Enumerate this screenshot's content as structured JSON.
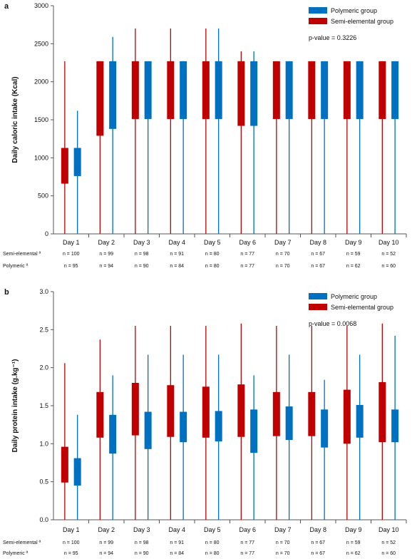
{
  "colors": {
    "semi_elemental": "#c00000",
    "polymeric": "#0070c0",
    "axis": "#555555"
  },
  "chart_data": [
    {
      "type": "box",
      "panel_label": "a",
      "ylabel": "Daily caloric intake (Kcal)",
      "ylim": [
        0,
        3000
      ],
      "yticks": [
        "0",
        "500",
        "1000",
        "1500",
        "2000",
        "2500",
        "3000"
      ],
      "categories": [
        "Day 1",
        "Day 2",
        "Day 3",
        "Day 4",
        "Day 5",
        "Day 6",
        "Day 7",
        "Day 8",
        "Day 9",
        "Day 10"
      ],
      "legend": [
        "Polymeric group",
        "Semi-elemental group"
      ],
      "legend_position": "top-right",
      "annotation": "p-value = 0.3226",
      "series": [
        {
          "name": "Semi-elemental group",
          "color": "#c00000",
          "min": [
            0,
            0,
            0,
            0,
            0,
            0,
            0,
            0,
            0,
            0
          ],
          "q1": [
            660,
            1290,
            1510,
            1510,
            1510,
            1420,
            1510,
            1510,
            1510,
            1510
          ],
          "q3": [
            1130,
            2270,
            2270,
            2270,
            2270,
            2270,
            2270,
            2270,
            2270,
            2270
          ],
          "max": [
            2270,
            2270,
            2700,
            2700,
            2700,
            2400,
            2270,
            2270,
            2270,
            2270
          ]
        },
        {
          "name": "Polymeric group",
          "color": "#0070c0",
          "min": [
            0,
            0,
            0,
            0,
            0,
            0,
            0,
            0,
            0,
            0
          ],
          "q1": [
            760,
            1380,
            1510,
            1510,
            1510,
            1420,
            1510,
            1510,
            1510,
            1510
          ],
          "q3": [
            1130,
            2270,
            2270,
            2270,
            2270,
            2270,
            2270,
            2270,
            2270,
            2270
          ],
          "max": [
            1620,
            2590,
            2270,
            2270,
            2700,
            2400,
            2270,
            2270,
            2270,
            2270
          ]
        }
      ],
      "n_rows": [
        {
          "label": "Semi-elemental ª",
          "values": [
            "n = 100",
            "n = 99",
            "n = 98",
            "n = 91",
            "n = 80",
            "n = 77",
            "n = 70",
            "n = 67",
            "n = 59",
            "n = 52"
          ]
        },
        {
          "label": "Polymeric ª",
          "values": [
            "n = 95",
            "n = 94",
            "n = 90",
            "n = 84",
            "n = 80",
            "n = 77",
            "n = 70",
            "n = 67",
            "n = 62",
            "n = 60"
          ]
        }
      ]
    },
    {
      "type": "box",
      "panel_label": "b",
      "ylabel": "Daily protein intake (g.kg⁻¹)",
      "ylim": [
        0,
        3.0
      ],
      "yticks": [
        "0.0",
        "0.5",
        "1.0",
        "1.5",
        "2.0",
        "2.5",
        "3.0"
      ],
      "categories": [
        "Day 1",
        "Day 2",
        "Day 3",
        "Day 4",
        "Day 5",
        "Day 6",
        "Day 7",
        "Day 8",
        "Day 9",
        "Day 10"
      ],
      "legend": [
        "Polymeric group",
        "Semi-elemental group"
      ],
      "legend_position": "top-right",
      "annotation": "p-value = 0.0068",
      "series": [
        {
          "name": "Semi-elemental group",
          "color": "#c00000",
          "min": [
            0,
            0,
            0,
            0,
            0,
            0,
            0,
            0,
            0,
            0
          ],
          "q1": [
            0.49,
            1.08,
            1.11,
            1.09,
            1.08,
            1.09,
            1.1,
            1.1,
            1.0,
            1.02
          ],
          "q3": [
            0.96,
            1.68,
            1.8,
            1.77,
            1.75,
            1.78,
            1.68,
            1.68,
            1.71,
            1.81
          ],
          "max": [
            2.06,
            2.37,
            2.55,
            2.55,
            2.55,
            2.58,
            2.55,
            2.55,
            2.55,
            2.58
          ]
        },
        {
          "name": "Polymeric group",
          "color": "#0070c0",
          "min": [
            0,
            0,
            0,
            0,
            0,
            0,
            0,
            0,
            0,
            0
          ],
          "q1": [
            0.45,
            0.87,
            0.93,
            1.02,
            1.03,
            0.88,
            1.05,
            0.95,
            1.08,
            1.02
          ],
          "q3": [
            0.81,
            1.38,
            1.42,
            1.42,
            1.43,
            1.45,
            1.49,
            1.45,
            1.51,
            1.45
          ],
          "max": [
            1.38,
            1.9,
            2.17,
            2.17,
            2.17,
            1.9,
            2.17,
            1.84,
            2.17,
            2.42
          ]
        }
      ],
      "n_rows": [
        {
          "label": "Semi-elemental ª",
          "values": [
            "n = 100",
            "n = 99",
            "n = 98",
            "n = 91",
            "n = 80",
            "n = 77",
            "n = 70",
            "n = 67",
            "n = 59",
            "n = 52"
          ]
        },
        {
          "label": "Polymeric ª",
          "values": [
            "n = 95",
            "n = 94",
            "n = 90",
            "n = 84",
            "n = 80",
            "n = 77",
            "n = 70",
            "n = 67",
            "n = 62",
            "n = 60"
          ]
        }
      ]
    }
  ]
}
